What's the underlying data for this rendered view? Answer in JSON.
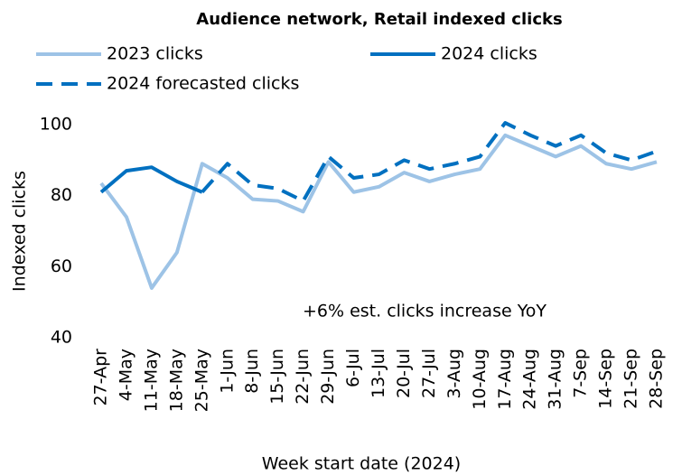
{
  "chart_data": {
    "type": "line",
    "title": "Audience network, Retail indexed clicks",
    "x_label": "Week start date (2024)",
    "y_label": "Indexed clicks",
    "annotation": "+6% est. clicks increase YoY",
    "categories": [
      "27-Apr",
      "4-May",
      "11-May",
      "18-May",
      "25-May",
      "1-Jun",
      "8-Jun",
      "15-Jun",
      "22-Jun",
      "29-Jun",
      "6-Jul",
      "13-Jul",
      "20-Jul",
      "27-Jul",
      "3-Aug",
      "10-Aug",
      "17-Aug",
      "24-Aug",
      "31-Aug",
      "7-Sep",
      "14-Sep",
      "21-Sep",
      "28-Sep"
    ],
    "series": [
      {
        "name": "2023 clicks",
        "color": "#9dc3e6",
        "dash": false,
        "values": [
          83.5,
          74,
          54,
          64,
          89,
          85,
          79,
          78.5,
          75.5,
          89.5,
          81,
          82.5,
          86.5,
          84,
          86,
          87.5,
          97,
          94,
          91,
          94,
          89,
          87.5,
          89.5
        ]
      },
      {
        "name": "2024 clicks",
        "color": "#0070c0",
        "dash": false,
        "values": [
          81,
          87,
          88,
          84,
          81,
          null,
          null,
          null,
          null,
          null,
          null,
          null,
          null,
          null,
          null,
          null,
          null,
          null,
          null,
          null,
          null,
          null,
          null
        ]
      },
      {
        "name": "2024 forecasted clicks",
        "color": "#0070c0",
        "dash": true,
        "values": [
          null,
          null,
          null,
          null,
          81,
          89,
          83,
          82,
          78.5,
          91,
          85,
          86,
          90,
          87.5,
          89,
          91,
          100.5,
          97,
          94,
          97,
          92,
          90,
          92.5
        ]
      }
    ],
    "ylim": [
      40,
      100
    ],
    "yticks": [
      40,
      60,
      80,
      100
    ],
    "grid": false
  }
}
